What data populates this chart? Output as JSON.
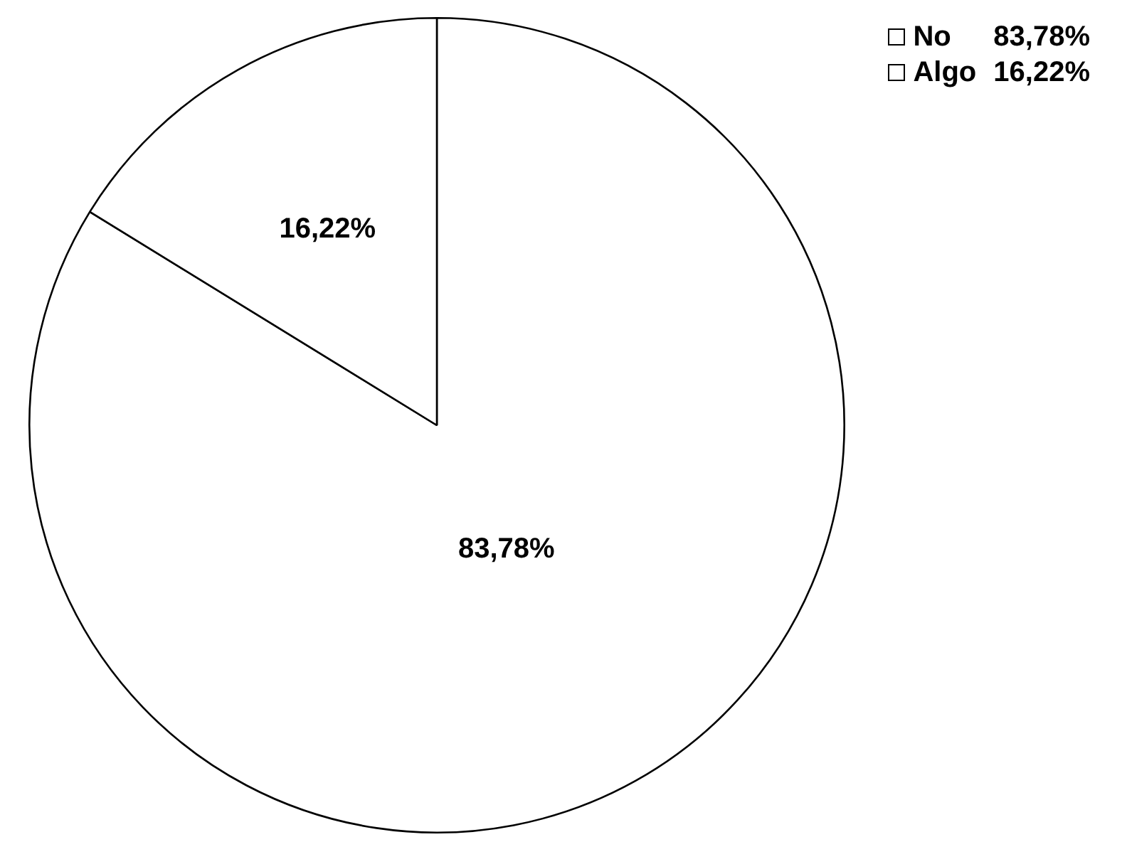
{
  "chart_data": {
    "type": "pie",
    "categories": [
      "No",
      "Algo"
    ],
    "values": [
      83.78,
      16.22
    ],
    "colors": [
      "#ffffff",
      "#ffffff"
    ],
    "value_labels": [
      "83,78%",
      "16,22%"
    ],
    "legend": "top right"
  }
}
